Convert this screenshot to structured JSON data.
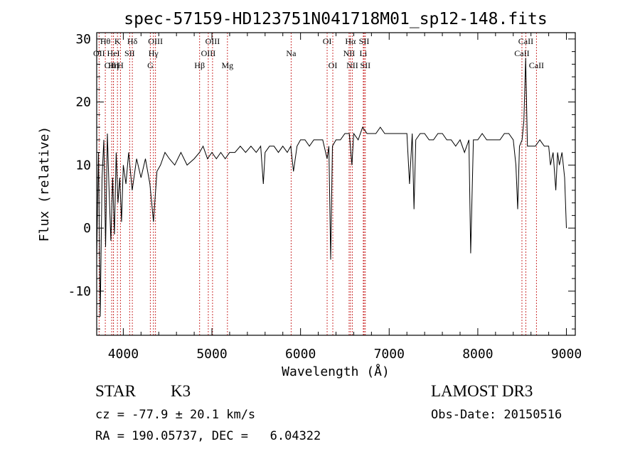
{
  "chart_data": {
    "type": "line",
    "title": "spec-57159-HD123751N041718M01_sp12-148.fits",
    "xlabel": "Wavelength (Å)",
    "ylabel": "Flux (relative)",
    "xlim": [
      3700,
      9100
    ],
    "ylim": [
      -17,
      31
    ],
    "xticks": [
      4000,
      5000,
      6000,
      7000,
      8000,
      9000
    ],
    "yticks": [
      -10,
      0,
      10,
      20,
      30
    ],
    "grid": false,
    "series": [
      {
        "name": "flux",
        "x": [
          3700,
          3720,
          3740,
          3760,
          3780,
          3800,
          3820,
          3840,
          3860,
          3880,
          3900,
          3920,
          3940,
          3960,
          3980,
          4000,
          4030,
          4060,
          4100,
          4150,
          4200,
          4250,
          4300,
          4340,
          4380,
          4420,
          4470,
          4520,
          4580,
          4650,
          4720,
          4800,
          4860,
          4900,
          4950,
          5000,
          5050,
          5100,
          5150,
          5200,
          5260,
          5320,
          5380,
          5440,
          5500,
          5550,
          5580,
          5600,
          5650,
          5700,
          5750,
          5800,
          5850,
          5890,
          5920,
          5960,
          6000,
          6050,
          6100,
          6150,
          6200,
          6250,
          6300,
          6320,
          6340,
          6360,
          6400,
          6450,
          6500,
          6550,
          6580,
          6600,
          6650,
          6700,
          6750,
          6800,
          6850,
          6900,
          6950,
          7000,
          7050,
          7100,
          7150,
          7200,
          7230,
          7260,
          7280,
          7300,
          7350,
          7400,
          7450,
          7500,
          7550,
          7600,
          7650,
          7700,
          7750,
          7800,
          7850,
          7900,
          7920,
          7950,
          8000,
          8050,
          8100,
          8150,
          8200,
          8250,
          8300,
          8350,
          8400,
          8430,
          8450,
          8470,
          8500,
          8520,
          8540,
          8560,
          8600,
          8650,
          8700,
          8750,
          8800,
          8820,
          8850,
          8880,
          8900,
          8920,
          8950,
          8980,
          9000
        ],
        "values": [
          -5,
          12,
          -14,
          8,
          14,
          -3,
          15,
          6,
          -2,
          8,
          -1,
          12,
          4,
          8,
          1,
          10,
          7,
          12,
          6,
          11,
          8,
          11,
          7,
          1,
          9,
          10,
          12,
          11,
          10,
          12,
          10,
          11,
          12,
          13,
          11,
          12,
          11,
          12,
          11,
          12,
          12,
          13,
          12,
          13,
          12,
          13,
          7,
          12,
          13,
          13,
          12,
          13,
          12,
          13,
          9,
          13,
          14,
          14,
          13,
          14,
          14,
          14,
          11,
          13,
          -5,
          13,
          14,
          14,
          15,
          15,
          10,
          15,
          14,
          16,
          15,
          15,
          15,
          16,
          15,
          15,
          15,
          15,
          15,
          15,
          7,
          15,
          3,
          14,
          15,
          15,
          14,
          14,
          15,
          15,
          14,
          14,
          13,
          14,
          12,
          14,
          -4,
          14,
          14,
          15,
          14,
          14,
          14,
          14,
          15,
          15,
          14,
          10,
          3,
          13,
          14,
          17,
          27,
          13,
          13,
          13,
          14,
          13,
          13,
          10,
          12,
          6,
          12,
          10,
          12,
          8,
          0
        ]
      }
    ],
    "lines": [
      {
        "label": "OII",
        "wavelength": 3727,
        "row": 2
      },
      {
        "label": "Hθ",
        "wavelength": 3797,
        "row": 1
      },
      {
        "label": "OIII",
        "wavelength": 3869,
        "row": 3
      },
      {
        "label": "Hη",
        "wavelength": 3889,
        "row": 3
      },
      {
        "label": "K",
        "wavelength": 3934,
        "row": 1
      },
      {
        "label": "HeI",
        "wavelength": 3889,
        "row": 2
      },
      {
        "label": "H",
        "wavelength": 3968,
        "row": 3
      },
      {
        "label": "SII",
        "wavelength": 4072,
        "row": 2
      },
      {
        "label": "Hδ",
        "wavelength": 4102,
        "row": 1
      },
      {
        "label": "G",
        "wavelength": 4305,
        "row": 3
      },
      {
        "label": "Hγ",
        "wavelength": 4340,
        "row": 2
      },
      {
        "label": "OIII",
        "wavelength": 4363,
        "row": 1
      },
      {
        "label": "Hβ",
        "wavelength": 4861,
        "row": 3
      },
      {
        "label": "OIII",
        "wavelength": 4959,
        "row": 2
      },
      {
        "label": "OIII",
        "wavelength": 5007,
        "row": 1
      },
      {
        "label": "Mg",
        "wavelength": 5175,
        "row": 3
      },
      {
        "label": "Na",
        "wavelength": 5894,
        "row": 2
      },
      {
        "label": "OI",
        "wavelength": 6300,
        "row": 1
      },
      {
        "label": "OI",
        "wavelength": 6364,
        "row": 3
      },
      {
        "label": "NII",
        "wavelength": 6548,
        "row": 2
      },
      {
        "label": "Hα",
        "wavelength": 6563,
        "row": 1
      },
      {
        "label": "NII",
        "wavelength": 6584,
        "row": 3
      },
      {
        "label": "Li",
        "wavelength": 6708,
        "row": 2
      },
      {
        "label": "SII",
        "wavelength": 6717,
        "row": 1
      },
      {
        "label": "SII",
        "wavelength": 6731,
        "row": 3
      },
      {
        "label": "CaII",
        "wavelength": 8498,
        "row": 2
      },
      {
        "label": "CaII",
        "wavelength": 8542,
        "row": 1
      },
      {
        "label": "CaII",
        "wavelength": 8662,
        "row": 3
      }
    ]
  },
  "info": {
    "object_class": "STAR",
    "subclass": "K3",
    "survey": "LAMOST DR3",
    "redshift": "cz = -77.9 ± 20.1 km/s",
    "obs_date": "Obs-Date: 20150516",
    "coords": "RA = 190.05737, DEC =   6.04322"
  },
  "colors": {
    "line_marker": "#cc3333",
    "spectrum": "#000000",
    "axis": "#000000"
  }
}
